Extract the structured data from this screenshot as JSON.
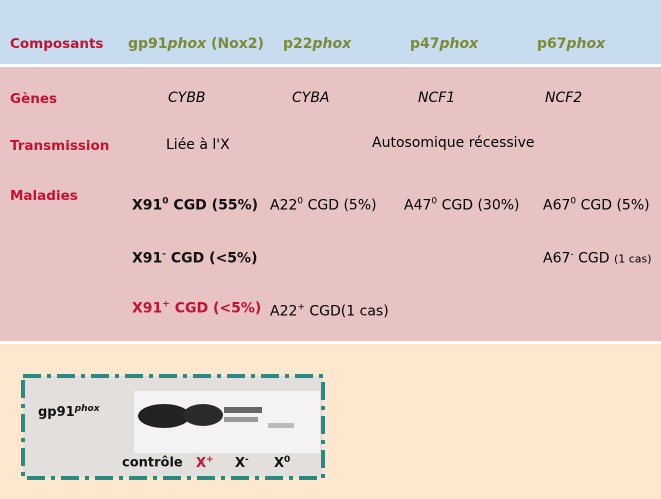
{
  "header": {
    "label": "Composants",
    "columns": [
      {
        "name": "gp91",
        "italic": "phox",
        "suffix": " (Nox2)"
      },
      {
        "name": "p22",
        "italic": "phox"
      },
      {
        "name": "p47",
        "italic": "phox"
      },
      {
        "name": "p67",
        "italic": "phox"
      }
    ]
  },
  "genes": {
    "label": "Gènes",
    "values": [
      "CYBB",
      "CYBA",
      "NCF1",
      "NCF2"
    ]
  },
  "transmission": {
    "label": "Transmission",
    "values": [
      "Liée à l'X",
      "Autosomique récessive"
    ]
  },
  "maladies": {
    "label": "Maladies",
    "rows": [
      [
        {
          "name": "X91",
          "sup": "0",
          "suffix": " CGD (55%)"
        },
        {
          "name": "A22",
          "sup": "0",
          "suffix": " CGD (5%)"
        },
        {
          "name": "A47",
          "sup": "0",
          "suffix": " CGD (30%)"
        },
        {
          "name": "A67",
          "sup": "0",
          "suffix": " CGD (5%)"
        }
      ],
      [
        {
          "name": "X91",
          "sup": "-",
          "suffix": " CGD (<5%)"
        },
        null,
        null,
        {
          "name": "A67",
          "sup": "-",
          "suffix": " CGD",
          "note": "(1 cas)"
        }
      ],
      [
        {
          "name": "X91",
          "sup": "+",
          "suffix": " CGD (<5%)"
        },
        {
          "name": "A22",
          "sup": "+",
          "suffix": " CGD(1 cas)"
        },
        null,
        null
      ]
    ]
  },
  "figure": {
    "protein": "gp91",
    "protein_sup": "phox",
    "lanes": [
      {
        "name": "contrôle"
      },
      {
        "name": "X",
        "sup": "+"
      },
      {
        "name": "X",
        "sup": "-"
      },
      {
        "name": "X",
        "sup": "0"
      }
    ]
  }
}
